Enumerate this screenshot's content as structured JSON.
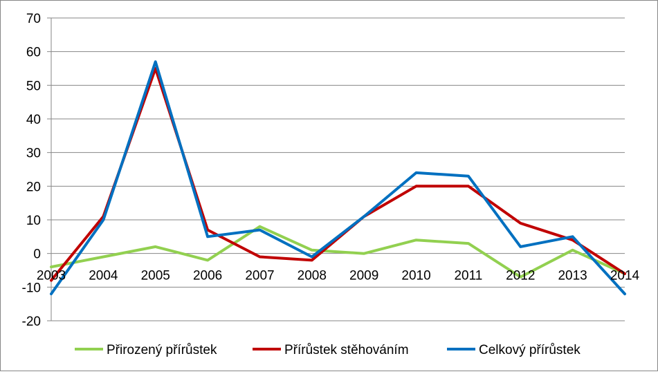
{
  "chart_data": {
    "type": "line",
    "x": [
      "2003",
      "2004",
      "2005",
      "2006",
      "2007",
      "2008",
      "2009",
      "2010",
      "2011",
      "2012",
      "2013",
      "2014"
    ],
    "ylim": [
      -20,
      70
    ],
    "yticks": [
      -20,
      -10,
      0,
      10,
      20,
      30,
      40,
      50,
      60,
      70
    ],
    "ytick_labels": [
      "-20",
      "-10",
      "0",
      "10",
      "20",
      "30",
      "40",
      "50",
      "60",
      "70"
    ],
    "grid": true,
    "legend_position": "bottom",
    "series": [
      {
        "name": "Přirozený přírůstek",
        "color": "#92d050",
        "values": [
          -4,
          -1,
          2,
          -2,
          8,
          1,
          0,
          4,
          3,
          -7,
          1,
          -6
        ]
      },
      {
        "name": "Přírůstek stěhováním",
        "color": "#c00000",
        "values": [
          -8,
          11,
          55,
          7,
          -1,
          -2,
          11,
          20,
          20,
          9,
          4,
          -6
        ]
      },
      {
        "name": "Celkový přírůstek",
        "color": "#0070c0",
        "values": [
          -12,
          10,
          57,
          5,
          7,
          -1,
          11,
          24,
          23,
          2,
          5,
          -12
        ]
      }
    ]
  }
}
